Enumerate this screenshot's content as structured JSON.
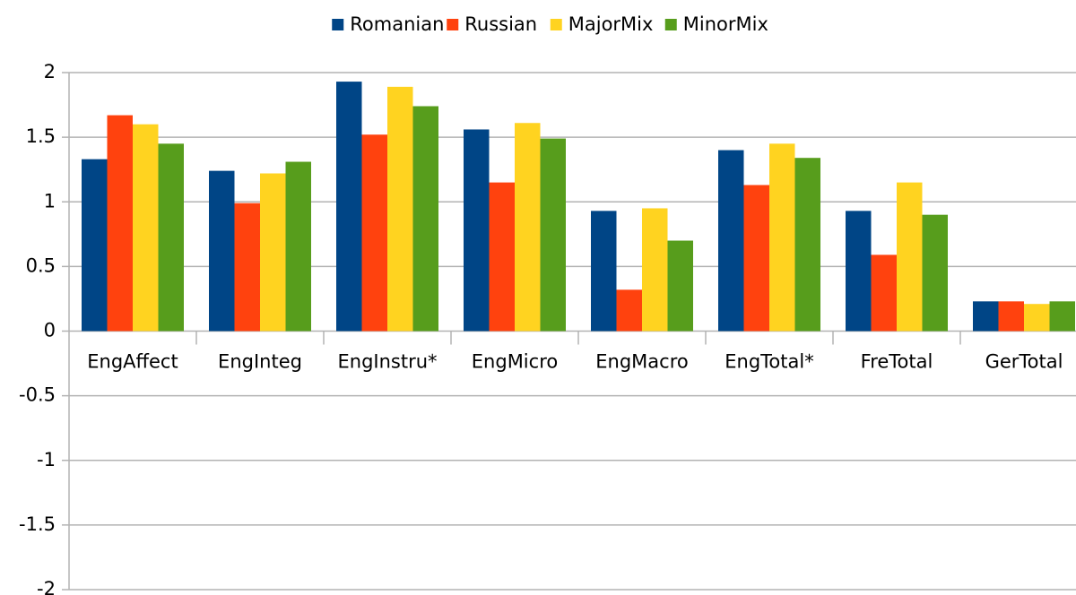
{
  "chart_data": {
    "type": "bar",
    "categories": [
      "EngAffect",
      "EngInteg",
      "EngInstru*",
      "EngMicro",
      "EngMacro",
      "EngTotal*",
      "FreTotal",
      "GerTotal"
    ],
    "series": [
      {
        "name": "Romanian",
        "color": "#004586",
        "values": [
          1.33,
          1.24,
          1.93,
          1.56,
          0.93,
          1.4,
          0.93,
          0.23
        ]
      },
      {
        "name": "Russian",
        "color": "#ff420e",
        "values": [
          1.67,
          0.99,
          1.52,
          1.15,
          0.32,
          1.13,
          0.59,
          0.23
        ]
      },
      {
        "name": "MajorMix",
        "color": "#ffd320",
        "values": [
          1.6,
          1.22,
          1.89,
          1.61,
          0.95,
          1.45,
          1.15,
          0.21
        ]
      },
      {
        "name": "MinorMix",
        "color": "#579d1c",
        "values": [
          1.45,
          1.31,
          1.74,
          1.49,
          0.7,
          1.34,
          0.9,
          0.23
        ]
      }
    ],
    "ylim": [
      -2,
      2
    ],
    "yticks": [
      -2,
      -1.5,
      -1,
      -0.5,
      0,
      0.5,
      1,
      1.5,
      2
    ],
    "grid": true,
    "legend": "top"
  }
}
